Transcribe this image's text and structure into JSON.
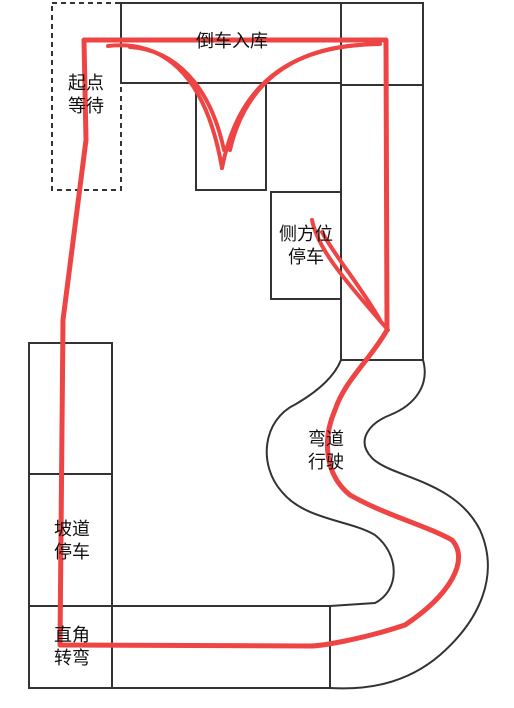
{
  "stations": {
    "start_wait": [
      "起点",
      "等待"
    ],
    "reverse_parking": "倒车入库",
    "parallel_parking": [
      "侧方位",
      "停车"
    ],
    "curve_driving": [
      "弯道",
      "行驶"
    ],
    "slope_parking": [
      "坡道",
      "停车"
    ],
    "right_angle_turn": [
      "直角",
      "转弯"
    ]
  },
  "colors": {
    "route": "#ee4444",
    "outline": "#333333",
    "background": "#ffffff"
  }
}
